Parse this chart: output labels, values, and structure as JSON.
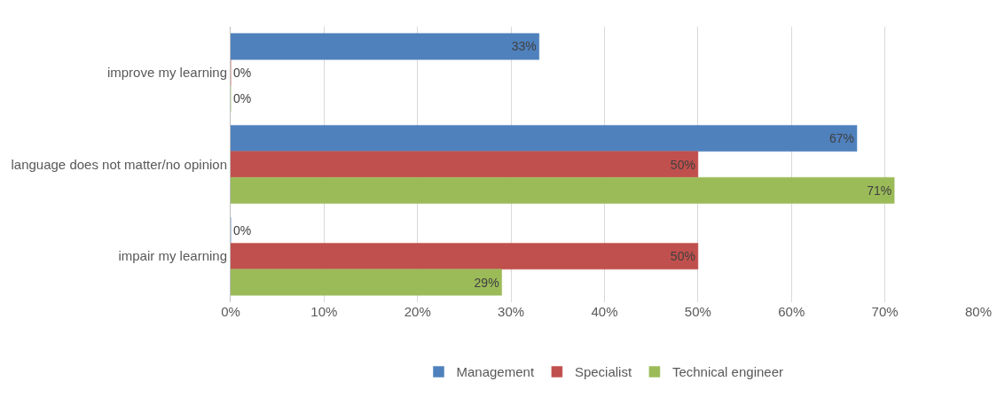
{
  "chart_data": {
    "type": "bar",
    "orientation": "horizontal",
    "categories": [
      "improve my learning",
      "language does not matter/no opinion",
      "impair my learning"
    ],
    "series": [
      {
        "name": "Management",
        "color": "#4f81bd",
        "values": [
          33,
          67,
          0
        ],
        "value_labels": [
          "33%",
          "67%",
          "0%"
        ]
      },
      {
        "name": "Specialist",
        "color": "#c0504d",
        "values": [
          0,
          50,
          50
        ],
        "value_labels": [
          "0%",
          "50%",
          "50%"
        ]
      },
      {
        "name": "Technical engineer",
        "color": "#9bbb59",
        "values": [
          0,
          71,
          29
        ],
        "value_labels": [
          "0%",
          "71%",
          "29%"
        ]
      }
    ],
    "xlim": [
      0,
      80
    ],
    "xticks": [
      {
        "value": 0,
        "label": "0%"
      },
      {
        "value": 10,
        "label": "10%"
      },
      {
        "value": 20,
        "label": "20%"
      },
      {
        "value": 30,
        "label": "30%"
      },
      {
        "value": 40,
        "label": "40%"
      },
      {
        "value": 50,
        "label": "50%"
      },
      {
        "value": 60,
        "label": "60%"
      },
      {
        "value": 70,
        "label": "70%"
      },
      {
        "value": 80,
        "label": "80%"
      }
    ],
    "grid": "x",
    "legend": "bottom"
  }
}
